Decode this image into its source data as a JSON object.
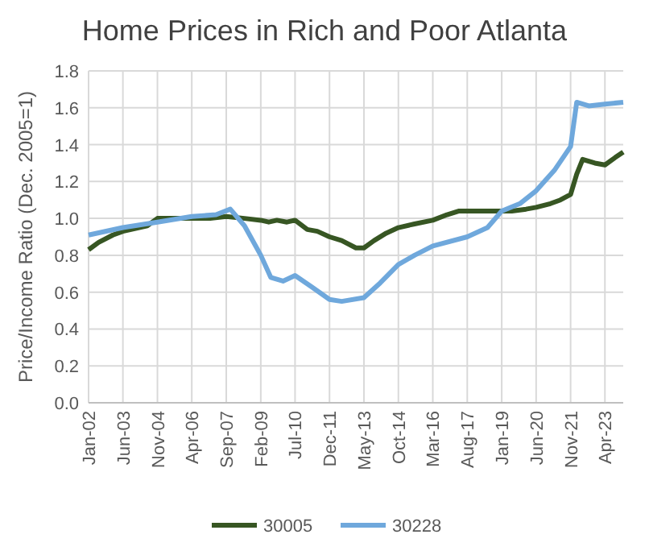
{
  "chart_data": {
    "type": "line",
    "title": "Home Prices in Rich and Poor Atlanta",
    "ylabel": "Price/Income Ratio (Dec. 2005=1)",
    "xlim": [
      "2002-01",
      "2024-01"
    ],
    "ylim": [
      0,
      1.8
    ],
    "yticks": [
      {
        "value": 0,
        "label": "0.0"
      },
      {
        "value": 0.2,
        "label": "0.2"
      },
      {
        "value": 0.4,
        "label": "0.4"
      },
      {
        "value": 0.6,
        "label": "0.6"
      },
      {
        "value": 0.8,
        "label": "0.8"
      },
      {
        "value": 1,
        "label": "1.0"
      },
      {
        "value": 1.2,
        "label": "1.2"
      },
      {
        "value": 1.4,
        "label": "1.4"
      },
      {
        "value": 1.6,
        "label": "1.6"
      },
      {
        "value": 1.8,
        "label": "1.8"
      }
    ],
    "xticks": [
      {
        "value": "2002-01",
        "label": "Jan-02"
      },
      {
        "value": "2003-06",
        "label": "Jun-03"
      },
      {
        "value": "2004-11",
        "label": "Nov-04"
      },
      {
        "value": "2006-04",
        "label": "Apr-06"
      },
      {
        "value": "2007-09",
        "label": "Sep-07"
      },
      {
        "value": "2009-02",
        "label": "Feb-09"
      },
      {
        "value": "2010-07",
        "label": "Jul-10"
      },
      {
        "value": "2011-12",
        "label": "Dec-11"
      },
      {
        "value": "2013-05",
        "label": "May-13"
      },
      {
        "value": "2014-10",
        "label": "Oct-14"
      },
      {
        "value": "2016-03",
        "label": "Mar-16"
      },
      {
        "value": "2017-08",
        "label": "Aug-17"
      },
      {
        "value": "2019-01",
        "label": "Jan-19"
      },
      {
        "value": "2020-06",
        "label": "Jun-20"
      },
      {
        "value": "2021-11",
        "label": "Nov-21"
      },
      {
        "value": "2023-04",
        "label": "Apr-23"
      }
    ],
    "grid": true,
    "legend": "bottom",
    "line_style": "solid",
    "series": [
      {
        "name": "30005",
        "color": "#375623",
        "x": [
          "2002-01",
          "2002-06",
          "2003-01",
          "2003-06",
          "2004-06",
          "2004-11",
          "2005-06",
          "2006-04",
          "2007-01",
          "2007-09",
          "2008-06",
          "2009-02",
          "2009-06",
          "2009-10",
          "2010-03",
          "2010-07",
          "2011-01",
          "2011-06",
          "2011-12",
          "2012-06",
          "2013-01",
          "2013-05",
          "2013-10",
          "2014-04",
          "2014-10",
          "2015-06",
          "2016-03",
          "2016-10",
          "2017-04",
          "2017-08",
          "2018-03",
          "2019-01",
          "2019-06",
          "2020-01",
          "2020-06",
          "2021-01",
          "2021-06",
          "2021-11",
          "2022-02",
          "2022-05",
          "2022-11",
          "2023-04",
          "2023-09",
          "2024-01"
        ],
        "values": [
          0.83,
          0.87,
          0.91,
          0.93,
          0.96,
          1.0,
          1.0,
          1.0,
          1.0,
          1.01,
          1.0,
          0.99,
          0.98,
          0.99,
          0.98,
          0.99,
          0.94,
          0.93,
          0.9,
          0.88,
          0.84,
          0.84,
          0.88,
          0.92,
          0.95,
          0.97,
          0.99,
          1.02,
          1.04,
          1.04,
          1.04,
          1.04,
          1.04,
          1.05,
          1.06,
          1.08,
          1.1,
          1.13,
          1.24,
          1.32,
          1.3,
          1.29,
          1.33,
          1.36
        ]
      },
      {
        "name": "30228",
        "color": "#6fa8dc",
        "x": [
          "2002-01",
          "2003-06",
          "2004-11",
          "2006-04",
          "2007-04",
          "2007-11",
          "2008-06",
          "2009-02",
          "2009-07",
          "2010-01",
          "2010-07",
          "2011-03",
          "2011-12",
          "2012-06",
          "2013-05",
          "2014-01",
          "2014-10",
          "2015-06",
          "2016-03",
          "2017-08",
          "2018-06",
          "2019-01",
          "2019-10",
          "2020-06",
          "2021-03",
          "2021-11",
          "2022-02",
          "2022-08",
          "2023-04",
          "2024-01"
        ],
        "values": [
          0.91,
          0.95,
          0.98,
          1.01,
          1.02,
          1.05,
          0.96,
          0.8,
          0.68,
          0.66,
          0.69,
          0.63,
          0.56,
          0.55,
          0.57,
          0.65,
          0.75,
          0.8,
          0.85,
          0.9,
          0.95,
          1.04,
          1.08,
          1.15,
          1.26,
          1.39,
          1.63,
          1.61,
          1.62,
          1.63
        ]
      }
    ]
  }
}
